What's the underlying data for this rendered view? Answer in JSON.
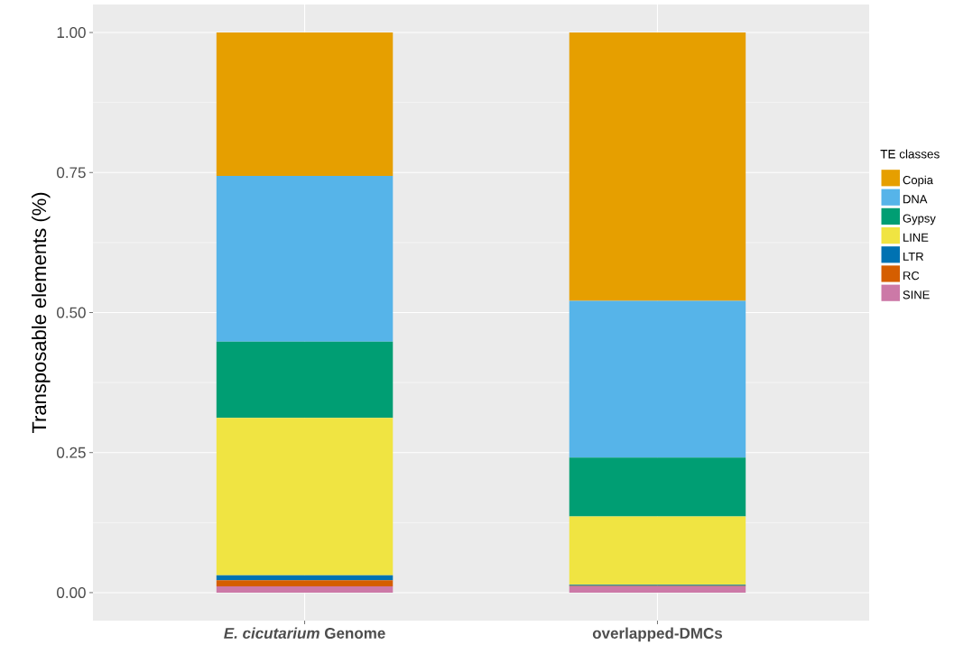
{
  "chart_data": {
    "type": "bar",
    "stacked": true,
    "ylabel": "Transposable elements (%)",
    "legend_title": "TE classes",
    "legend": "right",
    "grid": true,
    "categories": [
      "*E. cicutarium* Genome",
      "overlapped-DMCs"
    ],
    "ylim": [
      -0.05,
      1.05
    ],
    "yticks": [
      {
        "value": 0,
        "label": "0.00"
      },
      {
        "value": 0.25,
        "label": "0.25"
      },
      {
        "value": 0.5,
        "label": "0.50"
      },
      {
        "value": 0.75,
        "label": "0.75"
      },
      {
        "value": 1,
        "label": "1.00"
      }
    ],
    "series": [
      {
        "name": "SINE",
        "color": "#cc79a7",
        "values": [
          0.011,
          0.011
        ]
      },
      {
        "name": "RC",
        "color": "#d55e00",
        "values": [
          0.011,
          0.001
        ]
      },
      {
        "name": "LTR",
        "color": "#0072b2",
        "values": [
          0.009,
          0.002
        ]
      },
      {
        "name": "LINE",
        "color": "#f0e442",
        "values": [
          0.281,
          0.122
        ]
      },
      {
        "name": "Gypsy",
        "color": "#009e73",
        "values": [
          0.136,
          0.105
        ]
      },
      {
        "name": "DNA",
        "color": "#56b4e9",
        "values": [
          0.296,
          0.28
        ]
      },
      {
        "name": "Copia",
        "color": "#e69f00",
        "values": [
          0.256,
          0.479
        ]
      }
    ]
  }
}
